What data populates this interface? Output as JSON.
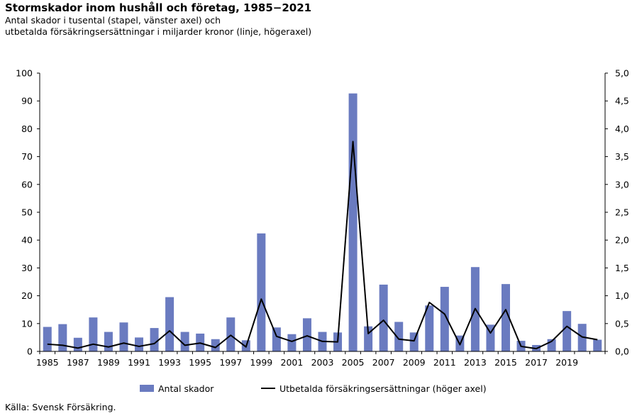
{
  "header": {
    "title": "Stormskador inom hushåll och företag, 1985−2021",
    "subtitle_line1": "Antal skador i tusental (stapel, vänster axel) och",
    "subtitle_line2": "utbetalda försäkringsersättningar i miljarder kronor (linje, högeraxel)"
  },
  "footer": {
    "source": "Källa: Svensk Försäkring."
  },
  "colors": {
    "bar": "#6a7bc0",
    "line": "#000000",
    "axis": "#000000"
  },
  "chart_data": {
    "type": "bar",
    "title": "Stormskador inom hushåll och företag, 1985−2021",
    "x": [
      1985,
      1986,
      1987,
      1988,
      1989,
      1990,
      1991,
      1992,
      1993,
      1994,
      1995,
      1996,
      1997,
      1998,
      1999,
      2000,
      2001,
      2002,
      2003,
      2004,
      2005,
      2006,
      2007,
      2008,
      2009,
      2010,
      2011,
      2012,
      2013,
      2014,
      2015,
      2016,
      2017,
      2018,
      2019,
      2020,
      2021
    ],
    "x_tick_labels": [
      "1985",
      "1987",
      "1989",
      "1991",
      "1993",
      "1995",
      "1997",
      "1999",
      "2001",
      "2003",
      "2005",
      "2007",
      "2009",
      "2011",
      "2013",
      "2015",
      "2017",
      "2019"
    ],
    "left_axis": {
      "ylim": [
        0,
        100
      ],
      "ticks": [
        "0",
        "10",
        "20",
        "30",
        "40",
        "50",
        "60",
        "70",
        "80",
        "90",
        "100"
      ]
    },
    "right_axis": {
      "ylim": [
        0,
        5
      ],
      "ticks": [
        "0,0",
        "0,5",
        "1,0",
        "1,5",
        "2,0",
        "2,5",
        "3,0",
        "3,5",
        "4,0",
        "4,5",
        "5,0"
      ]
    },
    "series": [
      {
        "name": "Antal skador",
        "type": "bar",
        "axis": "left",
        "values": [
          8.8,
          9.8,
          4.9,
          12.2,
          7.0,
          10.4,
          5.0,
          8.4,
          19.5,
          7.0,
          6.4,
          4.4,
          12.2,
          4.0,
          42.4,
          8.6,
          6.2,
          11.9,
          7.0,
          6.8,
          92.7,
          9.0,
          24.0,
          10.6,
          6.8,
          16.5,
          23.2,
          5.7,
          30.3,
          9.6,
          24.2,
          3.8,
          2.3,
          4.4,
          14.5,
          9.9,
          4.2
        ]
      },
      {
        "name": "Utbetalda försäkringsersättningar (höger axel)",
        "type": "line",
        "axis": "right",
        "values": [
          0.13,
          0.11,
          0.06,
          0.13,
          0.08,
          0.15,
          0.09,
          0.14,
          0.37,
          0.11,
          0.15,
          0.07,
          0.29,
          0.08,
          0.94,
          0.27,
          0.18,
          0.28,
          0.18,
          0.17,
          3.77,
          0.32,
          0.56,
          0.22,
          0.19,
          0.88,
          0.67,
          0.12,
          0.77,
          0.33,
          0.75,
          0.09,
          0.05,
          0.18,
          0.45,
          0.26,
          0.21
        ]
      }
    ],
    "legend": {
      "placement": "bottom"
    },
    "grid": false
  }
}
